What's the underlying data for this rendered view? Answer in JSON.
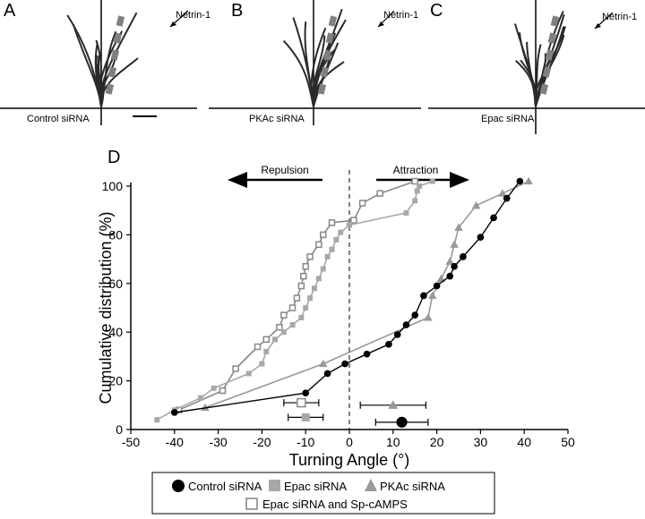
{
  "panels": [
    {
      "letter": "A",
      "label": "Control siRNA",
      "cue": "Netrin-1"
    },
    {
      "letter": "B",
      "label": "PKAc siRNA",
      "cue": "Netrin-1"
    },
    {
      "letter": "C",
      "label": "Epac siRNA",
      "cue": "Netrin-1"
    }
  ],
  "panel_d_letter": "D",
  "arrows": {
    "left": "Repulsion",
    "right": "Attraction"
  },
  "colors": {
    "control": "#000000",
    "epac": "#a8a8a8",
    "pkac": "#999999",
    "sp": "#888888",
    "trace": "#2a2a2a",
    "growth_cone": "#808080"
  },
  "chart_data": {
    "type": "line",
    "xlabel": "Turning Angle (°)",
    "ylabel": "Cumulative distribution (%)",
    "xlim": [
      -50,
      50
    ],
    "ylim": [
      0,
      100
    ],
    "xticks": [
      "-50",
      "-40",
      "-30",
      "-20",
      "-10",
      "0",
      "10",
      "20",
      "30",
      "40",
      "50"
    ],
    "yticks": [
      "0",
      "20",
      "40",
      "60",
      "80",
      "100"
    ],
    "reference_line_x": 0,
    "series": [
      {
        "name": "Control siRNA",
        "marker": "circle-filled",
        "x": [
          -40,
          -10,
          -5,
          -1,
          4,
          9,
          11,
          13,
          15,
          17,
          20,
          23,
          24,
          26,
          30,
          33,
          36,
          39
        ],
        "y": [
          7,
          15,
          23,
          27,
          31,
          35,
          39,
          43,
          47,
          55,
          59,
          63,
          67,
          71,
          79,
          87,
          95,
          102
        ],
        "mean": 12,
        "sem": 6,
        "mean_y": 3
      },
      {
        "name": "Epac siRNA",
        "marker": "square-filled",
        "x": [
          -44,
          -40,
          -34,
          -31,
          -23,
          -20,
          -19,
          -17,
          -15,
          -13,
          -11,
          -10,
          -9,
          -8,
          -7,
          -6,
          -5,
          -4,
          -3,
          -2,
          0,
          13,
          15,
          15.5,
          16,
          19
        ],
        "y": [
          4,
          8,
          13,
          17,
          23,
          27,
          32,
          37,
          40,
          43,
          46,
          50,
          54,
          58,
          62,
          66,
          71,
          74,
          78,
          81,
          84,
          89,
          94,
          98,
          100,
          102
        ],
        "mean": -10,
        "sem": 4,
        "mean_y": 5
      },
      {
        "name": "PKAc siRNA",
        "marker": "triangle-filled",
        "x": [
          -33,
          -6,
          18,
          19,
          21,
          23,
          24,
          25,
          29,
          35,
          41
        ],
        "y": [
          9,
          27,
          46,
          55,
          62,
          69,
          76,
          83,
          92,
          97,
          102
        ],
        "mean": 10,
        "sem": 7.5,
        "mean_y": 10
      },
      {
        "name": "Epac siRNA and Sp-cAMPS",
        "marker": "square-open",
        "x": [
          -39,
          -29,
          -26,
          -21,
          -19,
          -16,
          -15,
          -13,
          -12,
          -11,
          -10.5,
          -10,
          -9,
          -7,
          -6,
          -4,
          1,
          3,
          7,
          15
        ],
        "y": [
          8,
          16,
          25,
          34,
          37,
          42,
          47,
          50,
          54,
          59,
          63,
          67,
          71,
          76,
          80,
          85,
          86,
          93,
          97,
          102
        ],
        "mean": -11,
        "sem": 4,
        "mean_y": 11
      }
    ]
  },
  "legend": {
    "row1": [
      "Control siRNA",
      "Epac siRNA",
      "PKAc siRNA"
    ],
    "row2": [
      "Epac siRNA and Sp-cAMPS"
    ]
  }
}
